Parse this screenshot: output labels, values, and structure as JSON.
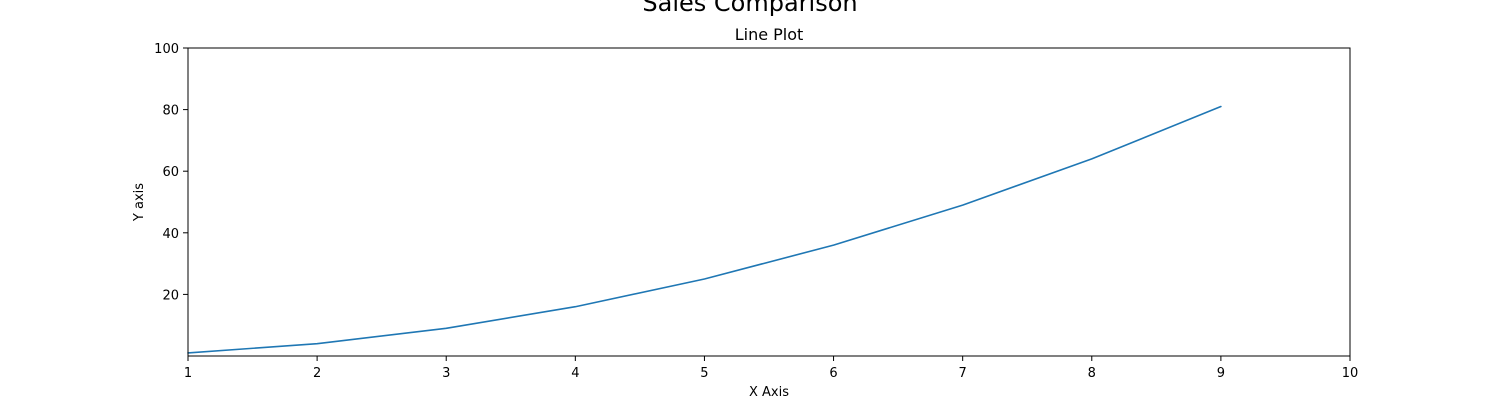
{
  "figure": {
    "suptitle": "Sales Comparison"
  },
  "chart_data": {
    "type": "line",
    "title": "Line Plot",
    "xlabel": "X Axis",
    "ylabel": "Y axis",
    "xlim": [
      1,
      10
    ],
    "ylim": [
      0,
      100
    ],
    "xticks": [
      1,
      2,
      3,
      4,
      5,
      6,
      7,
      8,
      9,
      10
    ],
    "yticks": [
      20,
      40,
      60,
      80,
      100
    ],
    "grid": false,
    "x": [
      1,
      2,
      3,
      4,
      5,
      6,
      7,
      8,
      9
    ],
    "series": [
      {
        "values": [
          1,
          4,
          9,
          16,
          25,
          36,
          49,
          64,
          81
        ],
        "color": "#1f77b4"
      }
    ]
  }
}
